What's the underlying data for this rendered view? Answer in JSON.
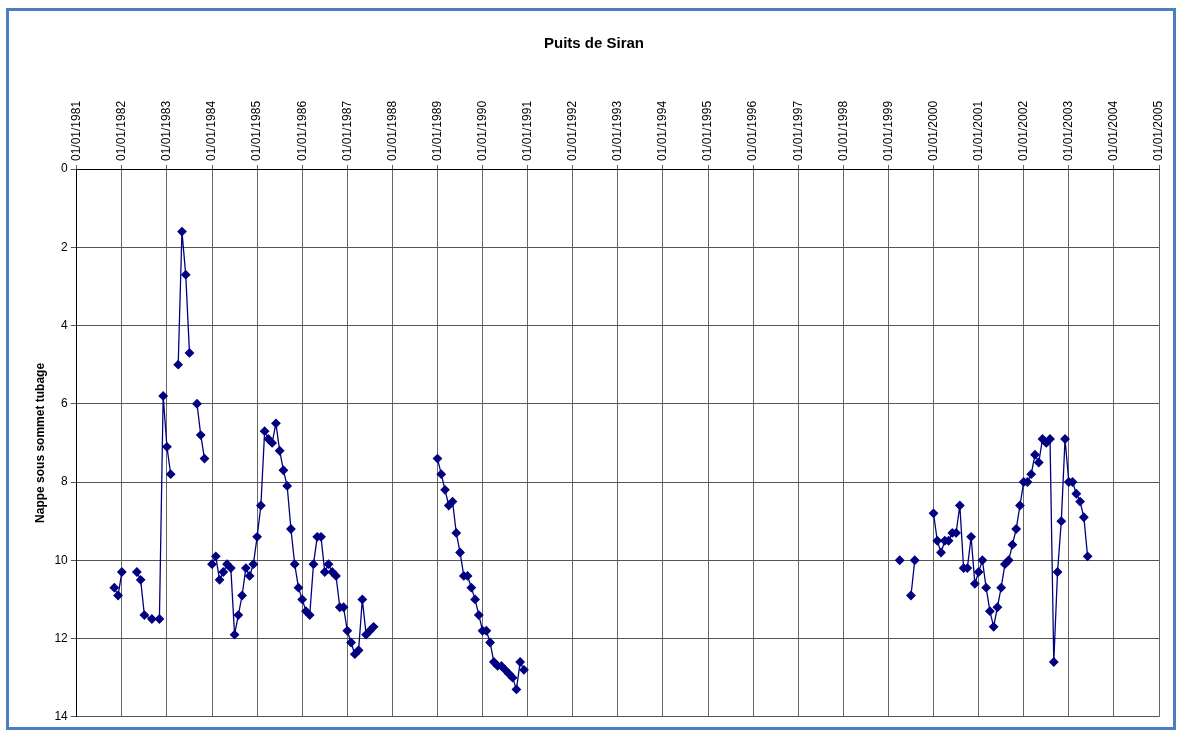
{
  "chart_data": {
    "type": "line",
    "title": "Puits de Siran",
    "ylabel": "Nappe sous sommet tubage",
    "xlim": [
      "1981-01-01",
      "2005-01-01"
    ],
    "xticks": [
      {
        "value": "1981-01-01",
        "label": "01/01/1981"
      },
      {
        "value": "1982-01-01",
        "label": "01/01/1982"
      },
      {
        "value": "1983-01-01",
        "label": "01/01/1983"
      },
      {
        "value": "1984-01-01",
        "label": "01/01/1984"
      },
      {
        "value": "1985-01-01",
        "label": "01/01/1985"
      },
      {
        "value": "1986-01-01",
        "label": "01/01/1986"
      },
      {
        "value": "1987-01-01",
        "label": "01/01/1987"
      },
      {
        "value": "1988-01-01",
        "label": "01/01/1988"
      },
      {
        "value": "1989-01-01",
        "label": "01/01/1989"
      },
      {
        "value": "1990-01-01",
        "label": "01/01/1990"
      },
      {
        "value": "1991-01-01",
        "label": "01/01/1991"
      },
      {
        "value": "1992-01-01",
        "label": "01/01/1992"
      },
      {
        "value": "1993-01-01",
        "label": "01/01/1993"
      },
      {
        "value": "1994-01-01",
        "label": "01/01/1994"
      },
      {
        "value": "1995-01-01",
        "label": "01/01/1995"
      },
      {
        "value": "1996-01-01",
        "label": "01/01/1996"
      },
      {
        "value": "1997-01-01",
        "label": "01/01/1997"
      },
      {
        "value": "1998-01-01",
        "label": "01/01/1998"
      },
      {
        "value": "1999-01-01",
        "label": "01/01/1999"
      },
      {
        "value": "2000-01-01",
        "label": "01/01/2000"
      },
      {
        "value": "2001-01-01",
        "label": "01/01/2001"
      },
      {
        "value": "2002-01-01",
        "label": "01/01/2002"
      },
      {
        "value": "2003-01-01",
        "label": "01/01/2003"
      },
      {
        "value": "2004-01-01",
        "label": "01/01/2004"
      },
      {
        "value": "2005-01-01",
        "label": "01/01/2005"
      }
    ],
    "ylim": [
      14,
      0
    ],
    "yticks": [
      0,
      2,
      4,
      6,
      8,
      10,
      12,
      14
    ],
    "grid": true,
    "marker": "diamond",
    "line_style": "solid",
    "series": [
      {
        "color": "#000080",
        "x": [
          "1981-11",
          "1981-12",
          "1982-01",
          "1982-03",
          "1982-05",
          "1982-06",
          "1982-07",
          "1982-09",
          "1982-11",
          "1982-12",
          "1983-01",
          "1983-02",
          "1983-03",
          "1983-04",
          "1983-05",
          "1983-06",
          "1983-07",
          "1983-08",
          "1983-09",
          "1983-10",
          "1983-11",
          "1983-12",
          "1984-01",
          "1984-02",
          "1984-03",
          "1984-04",
          "1984-05",
          "1984-06",
          "1984-07",
          "1984-08",
          "1984-09",
          "1984-10",
          "1984-11",
          "1984-12",
          "1985-01",
          "1985-02",
          "1985-03",
          "1985-04",
          "1985-05",
          "1985-06",
          "1985-07",
          "1985-08",
          "1985-09",
          "1985-10",
          "1985-11",
          "1985-12",
          "1986-01",
          "1986-02",
          "1986-03",
          "1986-04",
          "1986-05",
          "1986-06",
          "1986-07",
          "1986-08",
          "1986-09",
          "1986-10",
          "1986-11",
          "1986-12",
          "1987-01",
          "1987-02",
          "1987-03",
          "1987-04",
          "1987-05",
          "1987-06",
          "1987-07",
          "1987-08",
          "1988-06",
          "1989-01",
          "1989-02",
          "1989-03",
          "1989-04",
          "1989-05",
          "1989-06",
          "1989-07",
          "1989-08",
          "1989-09",
          "1989-10",
          "1989-11",
          "1989-12",
          "1990-01",
          "1990-02",
          "1990-03",
          "1990-04",
          "1990-05",
          "1990-06",
          "1990-07",
          "1990-08",
          "1990-09",
          "1990-10",
          "1990-11",
          "1990-12",
          "1995-01",
          "1999-04",
          "1999-05",
          "1999-07",
          "1999-08",
          "1999-10",
          "2000-01",
          "2000-02",
          "2000-03",
          "2000-04",
          "2000-05",
          "2000-06",
          "2000-07",
          "2000-08",
          "2000-09",
          "2000-10",
          "2000-11",
          "2000-12",
          "2001-01",
          "2001-02",
          "2001-03",
          "2001-04",
          "2001-05",
          "2001-06",
          "2001-07",
          "2001-08",
          "2001-09",
          "2001-10",
          "2001-11",
          "2001-12",
          "2002-01",
          "2002-02",
          "2002-03",
          "2002-04",
          "2002-05",
          "2002-06",
          "2002-07",
          "2002-08",
          "2002-09",
          "2002-10",
          "2002-11",
          "2002-12",
          "2003-01",
          "2003-02",
          "2003-03",
          "2003-04",
          "2003-05",
          "2003-06"
        ],
        "values": [
          10.7,
          10.9,
          10.3,
          null,
          10.3,
          10.5,
          11.4,
          11.5,
          11.5,
          5.8,
          7.1,
          7.8,
          null,
          5.0,
          1.6,
          2.7,
          4.7,
          null,
          6.0,
          6.8,
          7.4,
          null,
          10.1,
          9.9,
          10.5,
          10.3,
          10.1,
          10.2,
          11.9,
          11.4,
          10.9,
          10.2,
          10.4,
          10.1,
          9.4,
          8.6,
          6.7,
          6.9,
          7.0,
          6.5,
          7.2,
          7.7,
          8.1,
          9.2,
          10.1,
          10.7,
          11.0,
          11.3,
          11.4,
          10.1,
          9.4,
          9.4,
          10.3,
          10.1,
          10.3,
          10.4,
          11.2,
          11.2,
          11.8,
          12.1,
          12.4,
          12.3,
          11.0,
          11.9,
          11.8,
          11.7,
          null,
          7.4,
          7.8,
          8.2,
          8.6,
          8.5,
          9.3,
          9.8,
          10.4,
          10.4,
          10.7,
          11.0,
          11.4,
          11.8,
          11.8,
          12.1,
          12.6,
          12.7,
          12.7,
          12.8,
          12.9,
          13.0,
          13.3,
          12.6,
          12.8,
          null,
          10.0,
          null,
          10.9,
          10.0,
          null,
          8.8,
          9.5,
          9.8,
          9.5,
          9.5,
          9.3,
          9.3,
          8.6,
          10.2,
          10.2,
          9.4,
          10.6,
          10.3,
          10.0,
          10.7,
          11.3,
          11.7,
          11.2,
          10.7,
          10.1,
          10.0,
          9.6,
          9.2,
          8.6,
          8.0,
          8.0,
          7.8,
          7.3,
          7.5,
          6.9,
          7.0,
          6.9,
          12.6,
          10.3,
          9.0,
          6.9,
          8.0,
          8.0,
          8.3,
          8.5,
          8.9,
          9.9
        ]
      }
    ]
  }
}
